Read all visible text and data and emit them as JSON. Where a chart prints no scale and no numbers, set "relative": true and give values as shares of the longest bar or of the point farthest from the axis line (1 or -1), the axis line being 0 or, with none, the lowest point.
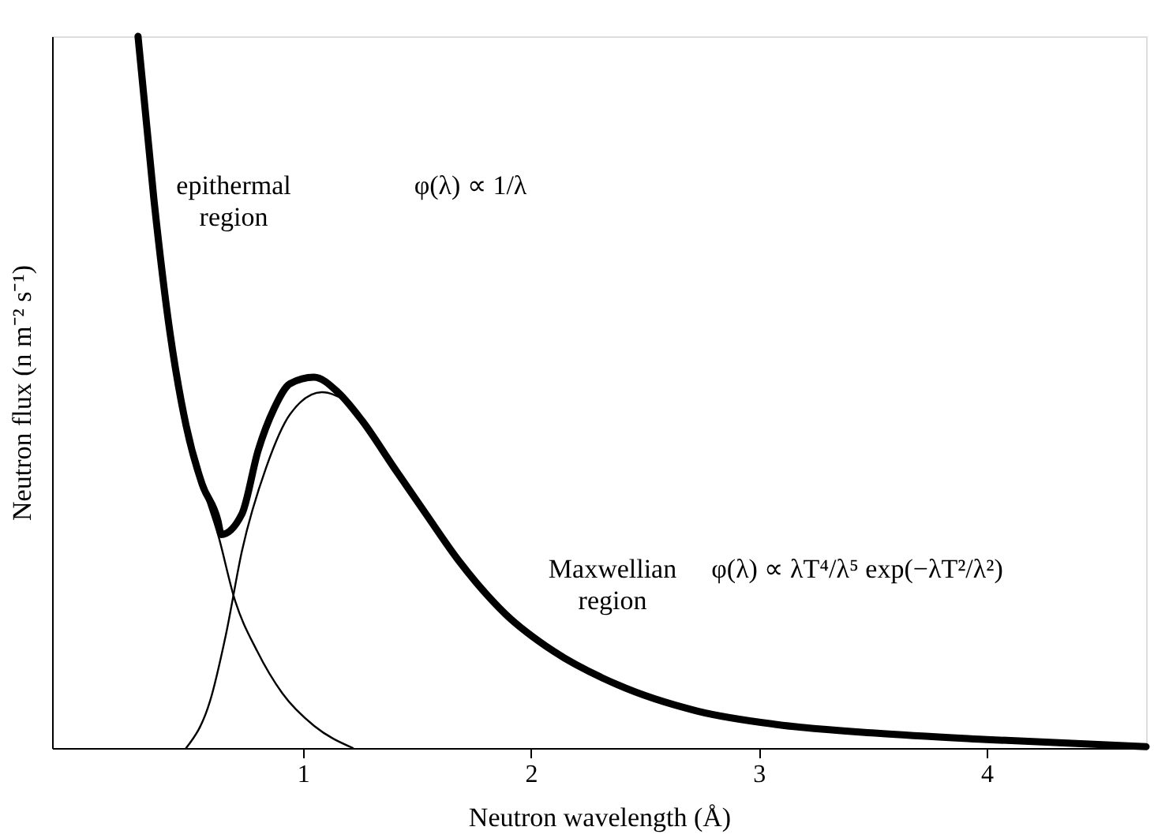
{
  "chart_data": {
    "type": "line",
    "relative": true,
    "xlabel": "Neutron wavelength (Å)",
    "ylabel": "Neutron flux (n m⁻² s⁻¹)",
    "xlim": [
      -0.1,
      4.7
    ],
    "xticks": [
      1,
      2,
      3,
      4
    ],
    "grid": false,
    "marker": "none",
    "line_style": "solid",
    "annotations": [
      "epithermal region",
      "φ(λ) ∝ 1/λ",
      "Maxwellian region",
      "φ(λ) ∝ λT⁴/λ⁵ exp(−λT²/λ²)"
    ],
    "series": [
      {
        "color": "#000000",
        "x": [
          0.277,
          0.347,
          0.417,
          0.488,
          0.558,
          0.628,
          0.642,
          0.733,
          0.804,
          0.874,
          0.944,
          1.049,
          1.154,
          1.26,
          1.4,
          1.54,
          1.68,
          1.89,
          2.1,
          2.38,
          2.73,
          3.08,
          3.51,
          4.0,
          4.7
        ],
        "values": [
          1.0,
          0.77,
          0.584,
          0.453,
          0.371,
          0.319,
          0.3,
          0.329,
          0.418,
          0.477,
          0.512,
          0.521,
          0.5,
          0.46,
          0.394,
          0.329,
          0.265,
          0.188,
          0.136,
          0.089,
          0.052,
          0.033,
          0.021,
          0.012,
          0.002
        ]
      },
      {
        "color": "#000000",
        "x": [
          0.277,
          0.347,
          0.417,
          0.488,
          0.558,
          0.628,
          0.7,
          0.8,
          0.91,
          1.05,
          1.22
        ],
        "values": [
          1.0,
          0.77,
          0.58,
          0.45,
          0.37,
          0.3,
          0.21,
          0.136,
          0.077,
          0.031,
          0.0
        ]
      },
      {
        "color": "#000000",
        "x": [
          0.488,
          0.593,
          0.663,
          0.733,
          0.839,
          0.944,
          1.084,
          1.19
        ],
        "values": [
          0.0,
          0.066,
          0.16,
          0.277,
          0.394,
          0.469,
          0.5,
          0.488
        ]
      }
    ]
  }
}
